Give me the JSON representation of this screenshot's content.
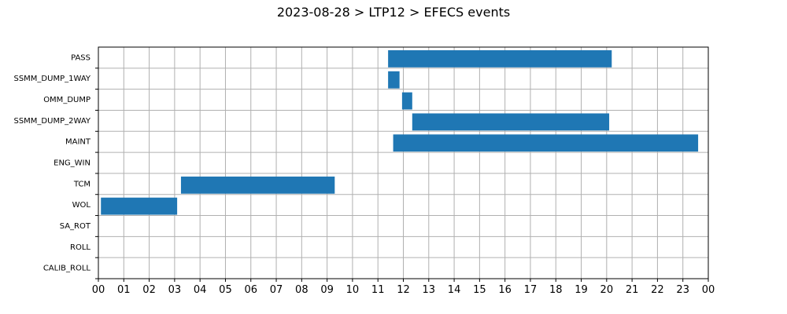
{
  "chart_data": {
    "type": "bar",
    "orientation": "horizontal",
    "title": "2023-08-28 > LTP12 > EFECS events",
    "xlabel": "",
    "ylabel": "",
    "x_unit": "hour",
    "xlim": [
      0,
      24
    ],
    "x_ticks": [
      "00",
      "01",
      "02",
      "03",
      "04",
      "05",
      "06",
      "07",
      "08",
      "09",
      "10",
      "11",
      "12",
      "13",
      "14",
      "15",
      "16",
      "17",
      "18",
      "19",
      "20",
      "21",
      "22",
      "23",
      "00"
    ],
    "categories": [
      "PASS",
      "SSMM_DUMP_1WAY",
      "OMM_DUMP",
      "SSMM_DUMP_2WAY",
      "MAINT",
      "ENG_WIN",
      "TCM",
      "WOL",
      "SA_ROT",
      "ROLL",
      "CALIB_ROLL"
    ],
    "grid": true,
    "bar_color": "#1f77b4",
    "events": [
      {
        "category": "PASS",
        "start": 11.4,
        "end": 20.2
      },
      {
        "category": "SSMM_DUMP_1WAY",
        "start": 11.4,
        "end": 11.85
      },
      {
        "category": "OMM_DUMP",
        "start": 11.95,
        "end": 12.35
      },
      {
        "category": "SSMM_DUMP_2WAY",
        "start": 12.35,
        "end": 20.1
      },
      {
        "category": "MAINT",
        "start": 11.6,
        "end": 23.6
      },
      {
        "category": "TCM",
        "start": 3.25,
        "end": 9.3
      },
      {
        "category": "WOL",
        "start": 0.1,
        "end": 3.1
      }
    ]
  }
}
